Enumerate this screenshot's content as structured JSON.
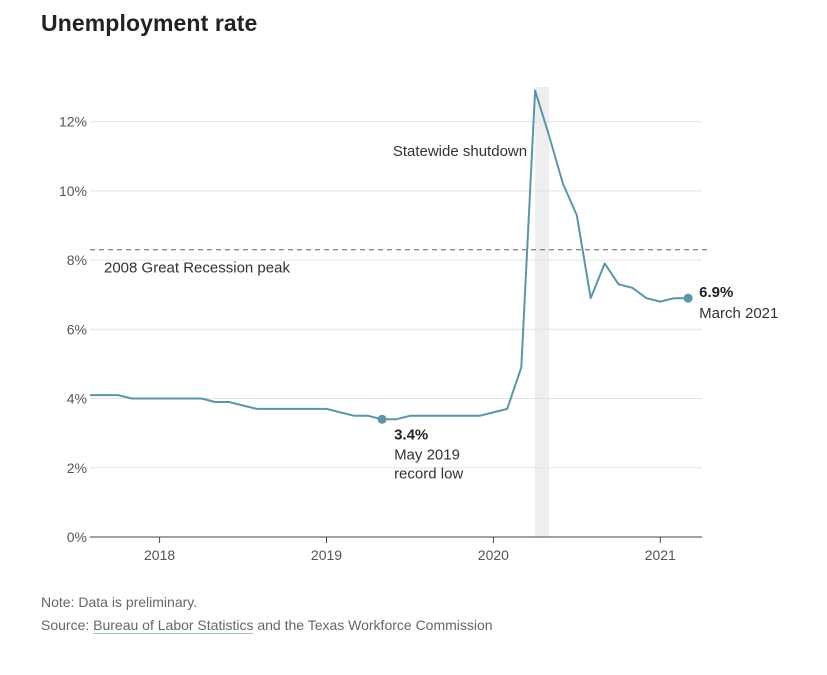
{
  "chart_data": {
    "type": "line",
    "title": "Unemployment rate",
    "ylabel": "",
    "xlabel": "",
    "ylim": [
      0,
      13
    ],
    "y_ticks": [
      "0%",
      "2%",
      "4%",
      "6%",
      "8%",
      "10%",
      "12%"
    ],
    "y_tick_values": [
      0,
      2,
      4,
      6,
      8,
      10,
      12
    ],
    "x_ticks": [
      "2018",
      "2019",
      "2020",
      "2021"
    ],
    "x_tick_values": [
      2018,
      2019,
      2020,
      2021
    ],
    "xlim": [
      2017.583,
      2021.25
    ],
    "grid": true,
    "line_color": "#5b96a8",
    "series": [
      {
        "x": [
          2017.583,
          2017.667,
          2017.75,
          2017.833,
          2017.917,
          2018.0,
          2018.083,
          2018.167,
          2018.25,
          2018.333,
          2018.417,
          2018.5,
          2018.583,
          2018.667,
          2018.75,
          2018.833,
          2018.917,
          2019.0,
          2019.083,
          2019.167,
          2019.25,
          2019.333,
          2019.417,
          2019.5,
          2019.583,
          2019.667,
          2019.75,
          2019.833,
          2019.917,
          2020.0,
          2020.083,
          2020.167,
          2020.25,
          2020.333,
          2020.417,
          2020.5,
          2020.583,
          2020.667,
          2020.75,
          2020.833,
          2020.917,
          2021.0,
          2021.083,
          2021.167
        ],
        "values": [
          4.1,
          4.1,
          4.1,
          4.0,
          4.0,
          4.0,
          4.0,
          4.0,
          4.0,
          3.9,
          3.9,
          3.8,
          3.7,
          3.7,
          3.7,
          3.7,
          3.7,
          3.7,
          3.6,
          3.5,
          3.5,
          3.4,
          3.4,
          3.5,
          3.5,
          3.5,
          3.5,
          3.5,
          3.5,
          3.6,
          3.7,
          4.9,
          12.9,
          11.6,
          10.2,
          9.3,
          6.9,
          7.9,
          7.3,
          7.2,
          6.9,
          6.8,
          6.9,
          6.9
        ]
      }
    ],
    "reference_line": {
      "value": 8.3,
      "label": "2008 Great Recession peak"
    },
    "shaded_period": {
      "start": 2020.25,
      "end": 2020.333,
      "label": "Statewide shutdown"
    },
    "annotations": [
      {
        "x": 2019.333,
        "y": 3.4,
        "value_label": "3.4%",
        "lines": [
          "May 2019",
          "record low"
        ]
      },
      {
        "x": 2021.167,
        "y": 6.9,
        "value_label": "6.9%",
        "lines": [
          "March 2021"
        ]
      }
    ]
  },
  "footer": {
    "note": "Note: Data is preliminary.",
    "source_prefix": "Source: ",
    "source_link": "Bureau of Labor Statistics",
    "source_suffix": " and the Texas Workforce Commission"
  }
}
